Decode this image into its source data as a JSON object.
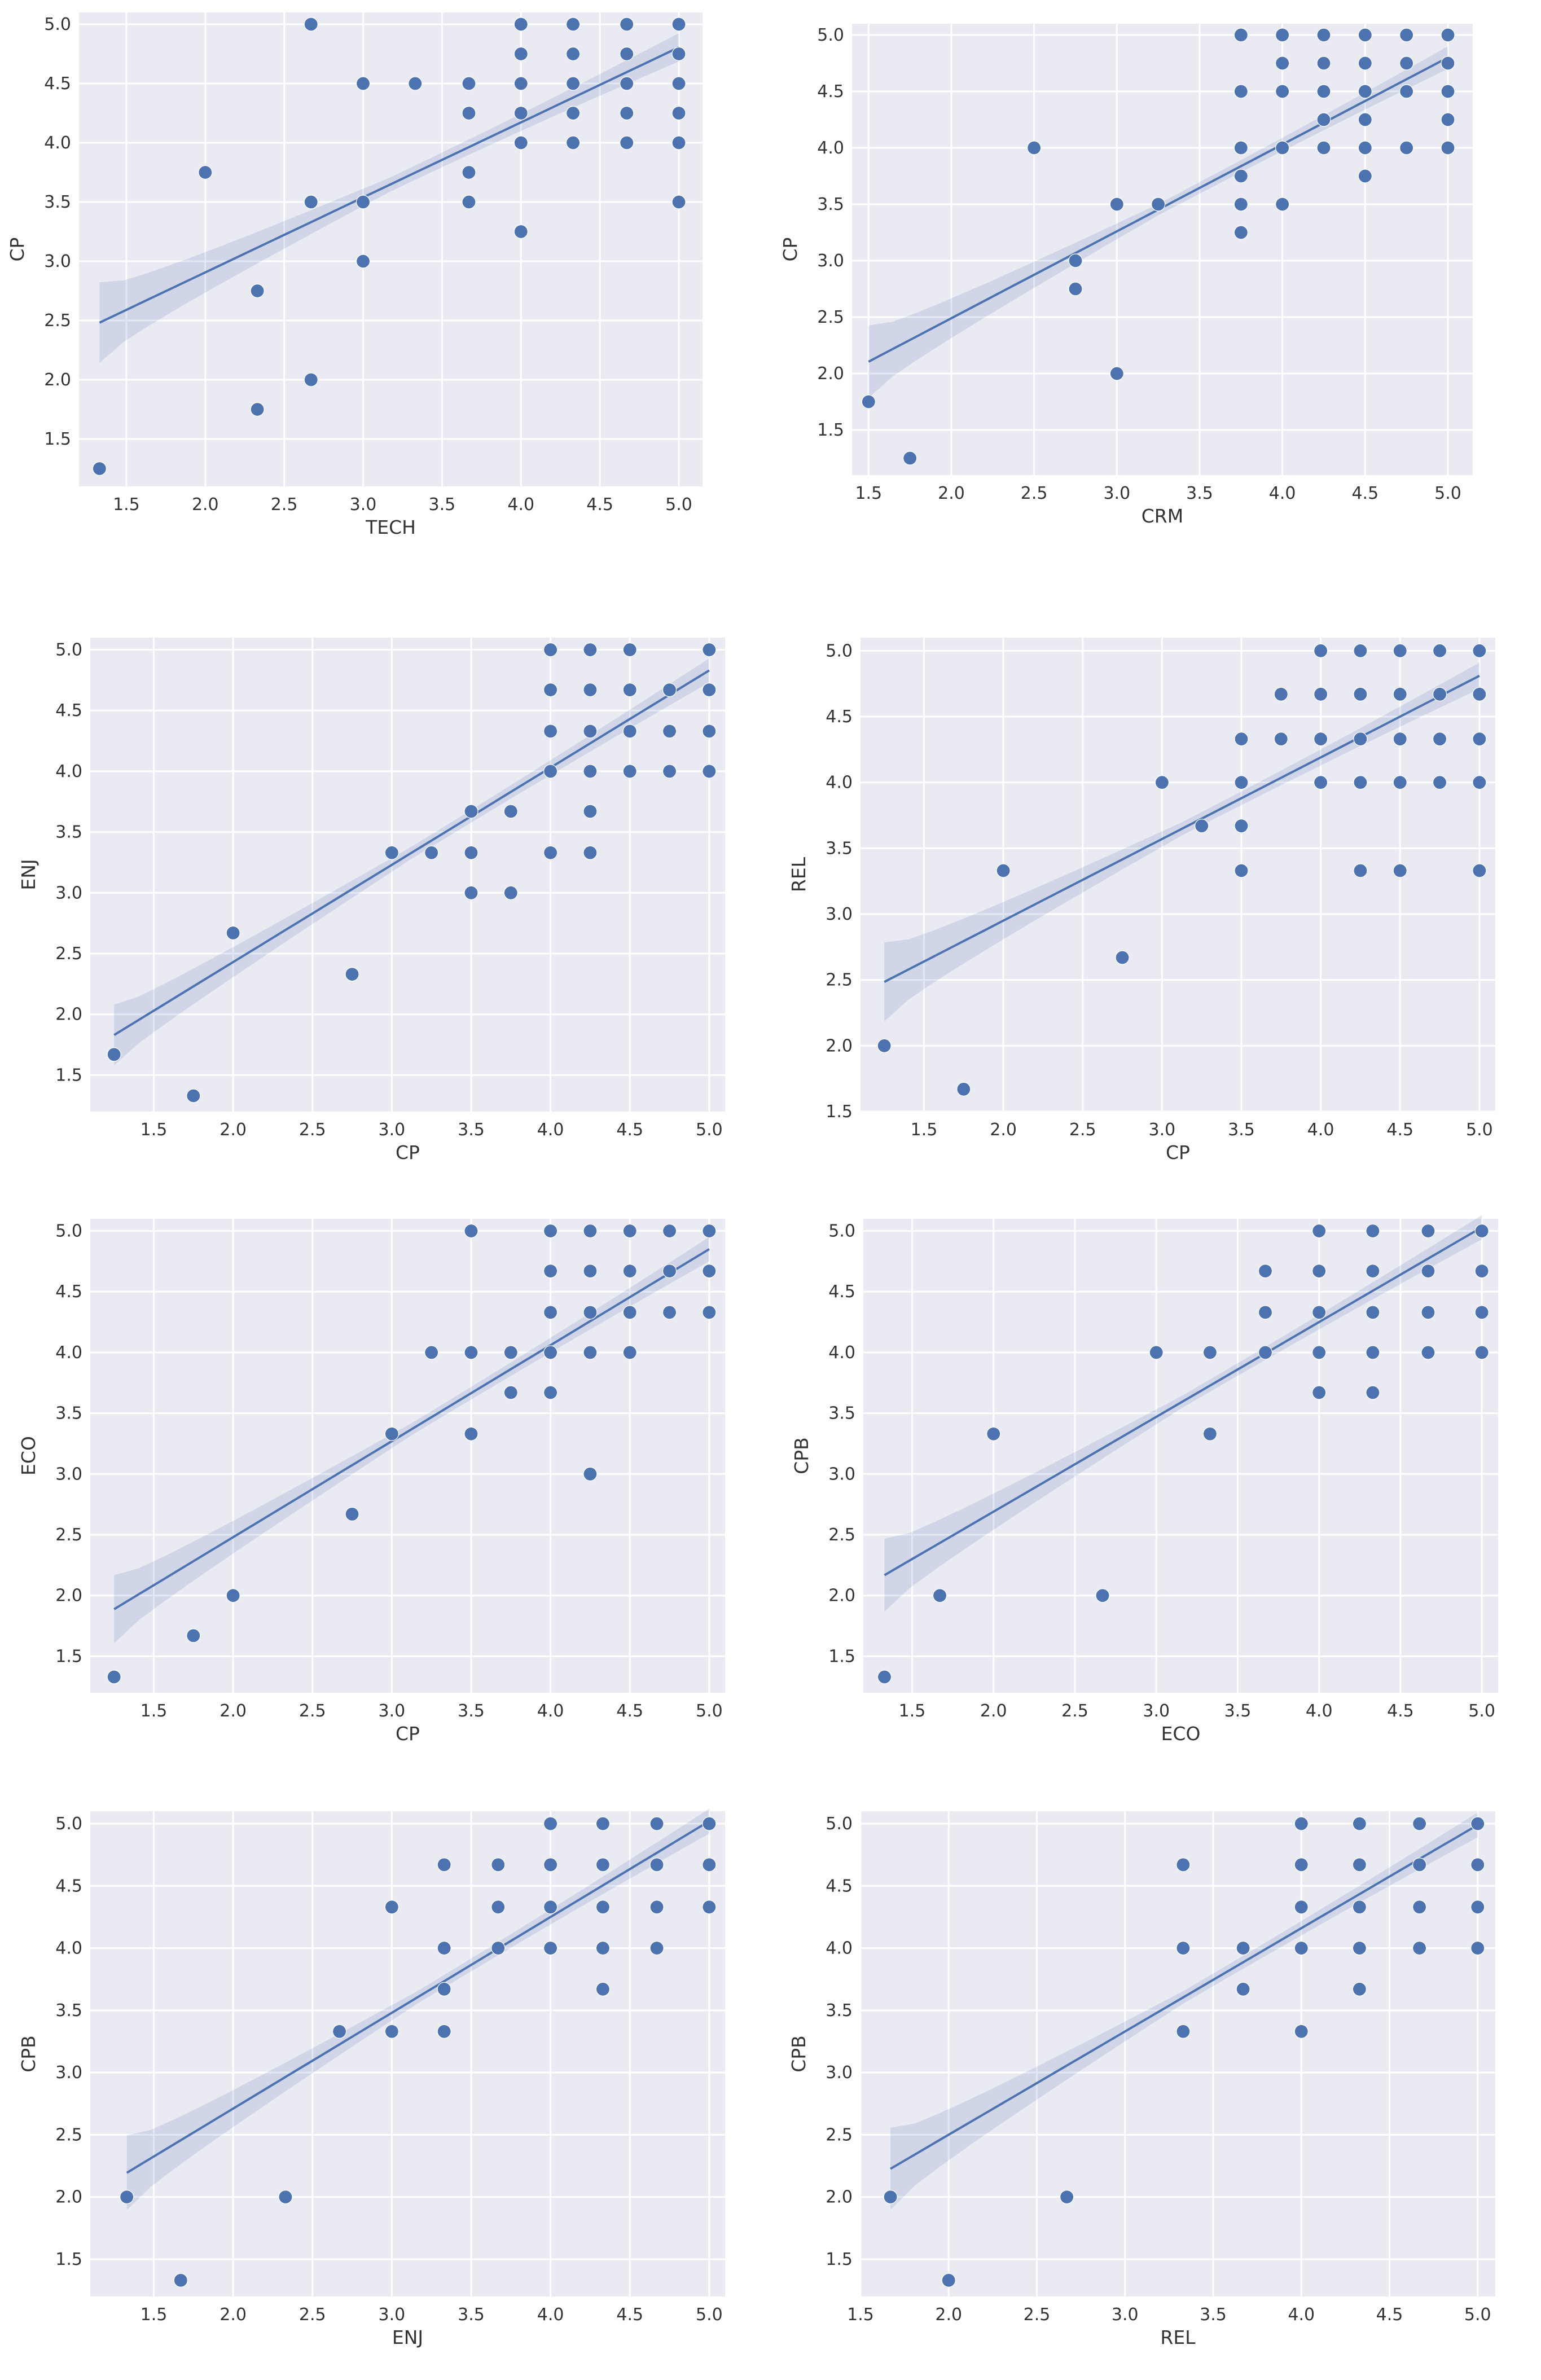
{
  "figure": {
    "background": "#ffffff",
    "plot_background": "#eaeaf2",
    "marker_color": "#4c72b0",
    "ci_color": "#4c72b0"
  },
  "chart_data": [
    {
      "type": "scatter",
      "title": "",
      "xlabel": "TECH",
      "ylabel": "CP",
      "xlim": [
        1.2,
        5.15
      ],
      "ylim": [
        1.1,
        5.1
      ],
      "xticks": [
        1.5,
        2.0,
        2.5,
        3.0,
        3.5,
        4.0,
        4.5,
        5.0
      ],
      "yticks": [
        1.5,
        2.0,
        2.5,
        3.0,
        3.5,
        4.0,
        4.5,
        5.0
      ],
      "regression": {
        "slope": 0.633,
        "intercept": 1.64,
        "ci_halfwidth": [
          0.34,
          0.06,
          0.12
        ]
      },
      "points": [
        [
          1.33,
          1.25
        ],
        [
          2.0,
          3.75
        ],
        [
          2.33,
          2.75
        ],
        [
          2.33,
          1.75
        ],
        [
          2.67,
          5.0
        ],
        [
          2.67,
          3.5
        ],
        [
          2.67,
          2.0
        ],
        [
          3.0,
          4.5
        ],
        [
          3.0,
          3.5
        ],
        [
          3.0,
          3.0
        ],
        [
          3.33,
          4.5
        ],
        [
          3.67,
          4.5
        ],
        [
          3.67,
          4.25
        ],
        [
          3.67,
          3.75
        ],
        [
          3.67,
          3.5
        ],
        [
          4.0,
          5.0
        ],
        [
          4.0,
          4.75
        ],
        [
          4.0,
          4.5
        ],
        [
          4.0,
          4.25
        ],
        [
          4.0,
          4.0
        ],
        [
          4.0,
          3.25
        ],
        [
          4.33,
          5.0
        ],
        [
          4.33,
          4.75
        ],
        [
          4.33,
          4.5
        ],
        [
          4.33,
          4.25
        ],
        [
          4.33,
          4.0
        ],
        [
          4.67,
          5.0
        ],
        [
          4.67,
          4.75
        ],
        [
          4.67,
          4.5
        ],
        [
          4.67,
          4.25
        ],
        [
          4.67,
          4.0
        ],
        [
          5.0,
          5.0
        ],
        [
          5.0,
          4.75
        ],
        [
          5.0,
          4.5
        ],
        [
          5.0,
          4.25
        ],
        [
          5.0,
          4.0
        ],
        [
          5.0,
          3.5
        ]
      ]
    },
    {
      "type": "scatter",
      "title": "",
      "xlabel": "CRM",
      "ylabel": "CP",
      "xlim": [
        1.4,
        5.15
      ],
      "ylim": [
        1.1,
        5.1
      ],
      "xticks": [
        1.5,
        2.0,
        2.5,
        3.0,
        3.5,
        4.0,
        4.5,
        5.0
      ],
      "yticks": [
        1.5,
        2.0,
        2.5,
        3.0,
        3.5,
        4.0,
        4.5,
        5.0
      ],
      "regression": {
        "slope": 0.77,
        "intercept": 0.95,
        "ci_halfwidth": [
          0.32,
          0.05,
          0.1
        ]
      },
      "points": [
        [
          1.5,
          1.75
        ],
        [
          1.75,
          1.25
        ],
        [
          2.5,
          4.0
        ],
        [
          2.75,
          3.0
        ],
        [
          2.75,
          2.75
        ],
        [
          3.0,
          3.5
        ],
        [
          3.0,
          2.0
        ],
        [
          3.25,
          3.5
        ],
        [
          3.75,
          5.0
        ],
        [
          3.75,
          4.5
        ],
        [
          3.75,
          4.0
        ],
        [
          3.75,
          3.75
        ],
        [
          3.75,
          3.5
        ],
        [
          3.75,
          3.25
        ],
        [
          4.0,
          5.0
        ],
        [
          4.0,
          4.75
        ],
        [
          4.0,
          4.5
        ],
        [
          4.0,
          4.0
        ],
        [
          4.0,
          3.5
        ],
        [
          4.25,
          5.0
        ],
        [
          4.25,
          4.75
        ],
        [
          4.25,
          4.5
        ],
        [
          4.25,
          4.25
        ],
        [
          4.25,
          4.0
        ],
        [
          4.5,
          5.0
        ],
        [
          4.5,
          4.75
        ],
        [
          4.5,
          4.5
        ],
        [
          4.5,
          4.25
        ],
        [
          4.5,
          4.0
        ],
        [
          4.5,
          3.75
        ],
        [
          4.75,
          5.0
        ],
        [
          4.75,
          4.75
        ],
        [
          4.75,
          4.5
        ],
        [
          4.75,
          4.0
        ],
        [
          5.0,
          5.0
        ],
        [
          5.0,
          4.75
        ],
        [
          5.0,
          4.5
        ],
        [
          5.0,
          4.25
        ],
        [
          5.0,
          4.0
        ]
      ]
    },
    {
      "type": "scatter",
      "title": "",
      "xlabel": "CP",
      "ylabel": "ENJ",
      "xlim": [
        1.1,
        5.1
      ],
      "ylim": [
        1.2,
        5.1
      ],
      "xticks": [
        1.5,
        2.0,
        2.5,
        3.0,
        3.5,
        4.0,
        4.5,
        5.0
      ],
      "yticks": [
        1.5,
        2.0,
        2.5,
        3.0,
        3.5,
        4.0,
        4.5,
        5.0
      ],
      "regression": {
        "slope": 0.8,
        "intercept": 0.83,
        "ci_halfwidth": [
          0.25,
          0.05,
          0.1
        ]
      },
      "points": [
        [
          1.25,
          1.67
        ],
        [
          1.75,
          1.33
        ],
        [
          2.0,
          2.67
        ],
        [
          2.75,
          2.33
        ],
        [
          3.0,
          3.33
        ],
        [
          3.25,
          3.33
        ],
        [
          3.5,
          3.67
        ],
        [
          3.5,
          3.33
        ],
        [
          3.5,
          3.0
        ],
        [
          3.75,
          3.67
        ],
        [
          3.75,
          3.0
        ],
        [
          4.0,
          5.0
        ],
        [
          4.0,
          4.67
        ],
        [
          4.0,
          4.33
        ],
        [
          4.0,
          4.0
        ],
        [
          4.0,
          3.33
        ],
        [
          4.25,
          5.0
        ],
        [
          4.25,
          4.67
        ],
        [
          4.25,
          4.33
        ],
        [
          4.25,
          4.0
        ],
        [
          4.25,
          3.67
        ],
        [
          4.25,
          3.33
        ],
        [
          4.5,
          5.0
        ],
        [
          4.5,
          4.67
        ],
        [
          4.5,
          4.33
        ],
        [
          4.5,
          4.0
        ],
        [
          4.75,
          4.67
        ],
        [
          4.75,
          4.33
        ],
        [
          4.75,
          4.0
        ],
        [
          5.0,
          5.0
        ],
        [
          5.0,
          4.67
        ],
        [
          5.0,
          4.33
        ],
        [
          5.0,
          4.0
        ]
      ]
    },
    {
      "type": "scatter",
      "title": "",
      "xlabel": "CP",
      "ylabel": "REL",
      "xlim": [
        1.1,
        5.1
      ],
      "ylim": [
        1.5,
        5.1
      ],
      "xticks": [
        1.5,
        2.0,
        2.5,
        3.0,
        3.5,
        4.0,
        4.5,
        5.0
      ],
      "yticks": [
        1.5,
        2.0,
        2.5,
        3.0,
        3.5,
        4.0,
        4.5,
        5.0
      ],
      "regression": {
        "slope": 0.62,
        "intercept": 1.71,
        "ci_halfwidth": [
          0.3,
          0.05,
          0.1
        ]
      },
      "points": [
        [
          1.25,
          2.0
        ],
        [
          1.75,
          1.67
        ],
        [
          2.0,
          3.33
        ],
        [
          2.75,
          2.67
        ],
        [
          3.0,
          4.0
        ],
        [
          3.25,
          3.67
        ],
        [
          3.5,
          4.33
        ],
        [
          3.5,
          4.0
        ],
        [
          3.5,
          3.67
        ],
        [
          3.5,
          3.33
        ],
        [
          3.75,
          4.67
        ],
        [
          3.75,
          4.33
        ],
        [
          4.0,
          5.0
        ],
        [
          4.0,
          4.67
        ],
        [
          4.0,
          4.33
        ],
        [
          4.0,
          4.0
        ],
        [
          4.25,
          5.0
        ],
        [
          4.25,
          4.67
        ],
        [
          4.25,
          4.33
        ],
        [
          4.25,
          4.0
        ],
        [
          4.25,
          3.33
        ],
        [
          4.5,
          5.0
        ],
        [
          4.5,
          4.67
        ],
        [
          4.5,
          4.33
        ],
        [
          4.5,
          4.0
        ],
        [
          4.5,
          3.33
        ],
        [
          4.75,
          5.0
        ],
        [
          4.75,
          4.67
        ],
        [
          4.75,
          4.33
        ],
        [
          4.75,
          4.0
        ],
        [
          5.0,
          5.0
        ],
        [
          5.0,
          4.67
        ],
        [
          5.0,
          4.33
        ],
        [
          5.0,
          4.0
        ],
        [
          5.0,
          3.33
        ]
      ]
    },
    {
      "type": "scatter",
      "title": "",
      "xlabel": "CP",
      "ylabel": "ECO",
      "xlim": [
        1.1,
        5.1
      ],
      "ylim": [
        1.2,
        5.1
      ],
      "xticks": [
        1.5,
        2.0,
        2.5,
        3.0,
        3.5,
        4.0,
        4.5,
        5.0
      ],
      "yticks": [
        1.5,
        2.0,
        2.5,
        3.0,
        3.5,
        4.0,
        4.5,
        5.0
      ],
      "regression": {
        "slope": 0.79,
        "intercept": 0.9,
        "ci_halfwidth": [
          0.28,
          0.05,
          0.1
        ]
      },
      "points": [
        [
          1.25,
          1.33
        ],
        [
          1.75,
          1.67
        ],
        [
          2.0,
          2.0
        ],
        [
          2.75,
          2.67
        ],
        [
          3.0,
          3.33
        ],
        [
          3.25,
          4.0
        ],
        [
          3.5,
          5.0
        ],
        [
          3.5,
          4.0
        ],
        [
          3.5,
          3.33
        ],
        [
          3.75,
          4.0
        ],
        [
          3.75,
          3.67
        ],
        [
          4.0,
          5.0
        ],
        [
          4.0,
          4.67
        ],
        [
          4.0,
          4.33
        ],
        [
          4.0,
          4.0
        ],
        [
          4.0,
          3.67
        ],
        [
          4.25,
          5.0
        ],
        [
          4.25,
          4.67
        ],
        [
          4.25,
          4.33
        ],
        [
          4.25,
          4.0
        ],
        [
          4.25,
          3.0
        ],
        [
          4.5,
          5.0
        ],
        [
          4.5,
          4.67
        ],
        [
          4.5,
          4.33
        ],
        [
          4.5,
          4.0
        ],
        [
          4.75,
          5.0
        ],
        [
          4.75,
          4.67
        ],
        [
          4.75,
          4.33
        ],
        [
          5.0,
          5.0
        ],
        [
          5.0,
          4.67
        ],
        [
          5.0,
          4.33
        ]
      ]
    },
    {
      "type": "scatter",
      "title": "",
      "xlabel": "ECO",
      "ylabel": "CPB",
      "xlim": [
        1.2,
        5.1
      ],
      "ylim": [
        1.2,
        5.1
      ],
      "xticks": [
        1.5,
        2.0,
        2.5,
        3.0,
        3.5,
        4.0,
        4.5,
        5.0
      ],
      "yticks": [
        1.5,
        2.0,
        2.5,
        3.0,
        3.5,
        4.0,
        4.5,
        5.0
      ],
      "regression": {
        "slope": 0.78,
        "intercept": 1.13,
        "ci_halfwidth": [
          0.3,
          0.05,
          0.1
        ]
      },
      "points": [
        [
          1.33,
          1.33
        ],
        [
          1.67,
          2.0
        ],
        [
          2.0,
          3.33
        ],
        [
          2.67,
          2.0
        ],
        [
          3.0,
          4.0
        ],
        [
          3.33,
          4.0
        ],
        [
          3.33,
          3.33
        ],
        [
          3.67,
          4.67
        ],
        [
          3.67,
          4.33
        ],
        [
          3.67,
          4.0
        ],
        [
          4.0,
          5.0
        ],
        [
          4.0,
          4.67
        ],
        [
          4.0,
          4.33
        ],
        [
          4.0,
          4.0
        ],
        [
          4.0,
          3.67
        ],
        [
          4.33,
          5.0
        ],
        [
          4.33,
          4.67
        ],
        [
          4.33,
          4.33
        ],
        [
          4.33,
          4.0
        ],
        [
          4.33,
          3.67
        ],
        [
          4.67,
          5.0
        ],
        [
          4.67,
          4.67
        ],
        [
          4.67,
          4.33
        ],
        [
          4.67,
          4.0
        ],
        [
          5.0,
          5.0
        ],
        [
          5.0,
          4.67
        ],
        [
          5.0,
          4.33
        ],
        [
          5.0,
          4.0
        ]
      ]
    },
    {
      "type": "scatter",
      "title": "",
      "xlabel": "ENJ",
      "ylabel": "CPB",
      "xlim": [
        1.1,
        5.1
      ],
      "ylim": [
        1.2,
        5.1
      ],
      "xticks": [
        1.5,
        2.0,
        2.5,
        3.0,
        3.5,
        4.0,
        4.5,
        5.0
      ],
      "yticks": [
        1.5,
        2.0,
        2.5,
        3.0,
        3.5,
        4.0,
        4.5,
        5.0
      ],
      "regression": {
        "slope": 0.77,
        "intercept": 1.17,
        "ci_halfwidth": [
          0.3,
          0.05,
          0.1
        ]
      },
      "points": [
        [
          1.33,
          2.0
        ],
        [
          1.67,
          1.33
        ],
        [
          2.33,
          2.0
        ],
        [
          2.67,
          3.33
        ],
        [
          3.0,
          4.33
        ],
        [
          3.0,
          3.33
        ],
        [
          3.33,
          4.67
        ],
        [
          3.33,
          4.0
        ],
        [
          3.33,
          3.67
        ],
        [
          3.33,
          3.33
        ],
        [
          3.67,
          4.67
        ],
        [
          3.67,
          4.33
        ],
        [
          3.67,
          4.0
        ],
        [
          4.0,
          5.0
        ],
        [
          4.0,
          4.67
        ],
        [
          4.0,
          4.33
        ],
        [
          4.0,
          4.0
        ],
        [
          4.33,
          5.0
        ],
        [
          4.33,
          4.67
        ],
        [
          4.33,
          4.33
        ],
        [
          4.33,
          4.0
        ],
        [
          4.33,
          3.67
        ],
        [
          4.67,
          5.0
        ],
        [
          4.67,
          4.67
        ],
        [
          4.67,
          4.33
        ],
        [
          4.67,
          4.0
        ],
        [
          5.0,
          5.0
        ],
        [
          5.0,
          4.67
        ],
        [
          5.0,
          4.33
        ]
      ]
    },
    {
      "type": "scatter",
      "title": "",
      "xlabel": "REL",
      "ylabel": "CPB",
      "xlim": [
        1.5,
        5.1
      ],
      "ylim": [
        1.2,
        5.1
      ],
      "xticks": [
        1.5,
        2.0,
        2.5,
        3.0,
        3.5,
        4.0,
        4.5,
        5.0
      ],
      "yticks": [
        1.5,
        2.0,
        2.5,
        3.0,
        3.5,
        4.0,
        4.5,
        5.0
      ],
      "regression": {
        "slope": 0.83,
        "intercept": 0.84,
        "ci_halfwidth": [
          0.33,
          0.05,
          0.1
        ]
      },
      "points": [
        [
          1.67,
          2.0
        ],
        [
          2.0,
          1.33
        ],
        [
          2.67,
          2.0
        ],
        [
          3.33,
          4.67
        ],
        [
          3.33,
          4.0
        ],
        [
          3.33,
          3.33
        ],
        [
          3.67,
          4.0
        ],
        [
          3.67,
          3.67
        ],
        [
          4.0,
          5.0
        ],
        [
          4.0,
          4.67
        ],
        [
          4.0,
          4.33
        ],
        [
          4.0,
          4.0
        ],
        [
          4.0,
          3.33
        ],
        [
          4.33,
          5.0
        ],
        [
          4.33,
          4.67
        ],
        [
          4.33,
          4.33
        ],
        [
          4.33,
          4.0
        ],
        [
          4.33,
          3.67
        ],
        [
          4.67,
          5.0
        ],
        [
          4.67,
          4.67
        ],
        [
          4.67,
          4.33
        ],
        [
          4.67,
          4.0
        ],
        [
          5.0,
          5.0
        ],
        [
          5.0,
          4.67
        ],
        [
          5.0,
          4.33
        ],
        [
          5.0,
          4.0
        ]
      ]
    }
  ]
}
